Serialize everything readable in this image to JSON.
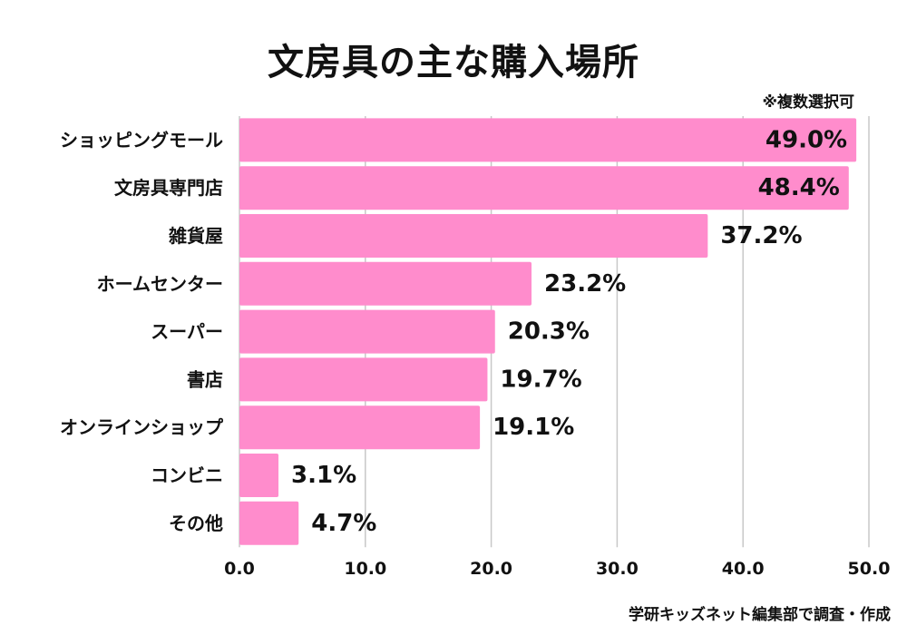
{
  "chart_data": {
    "type": "bar",
    "orientation": "horizontal",
    "title": "文房具の主な購入場所",
    "note": "※複数選択可",
    "source": "学研キッズネット編集部で調査・作成",
    "categories": [
      "ショッピングモール",
      "文房具専門店",
      "雑貨屋",
      "ホームセンター",
      "スーパー",
      "書店",
      "オンラインショップ",
      "コンビニ",
      "その他"
    ],
    "values": [
      49.0,
      48.4,
      37.2,
      23.2,
      20.3,
      19.7,
      19.1,
      3.1,
      4.7
    ],
    "value_labels": [
      "49.0%",
      "48.4%",
      "37.2%",
      "23.2%",
      "20.3%",
      "19.7%",
      "19.1%",
      "3.1%",
      "4.7%"
    ],
    "xlim": [
      0,
      50
    ],
    "xticks": [
      "0.0",
      "10.0",
      "20.0",
      "30.0",
      "40.0",
      "50.0"
    ],
    "grid": true,
    "bar_color": "#ff8ccc",
    "grid_color": "#c8c8c8",
    "legend": "none"
  }
}
